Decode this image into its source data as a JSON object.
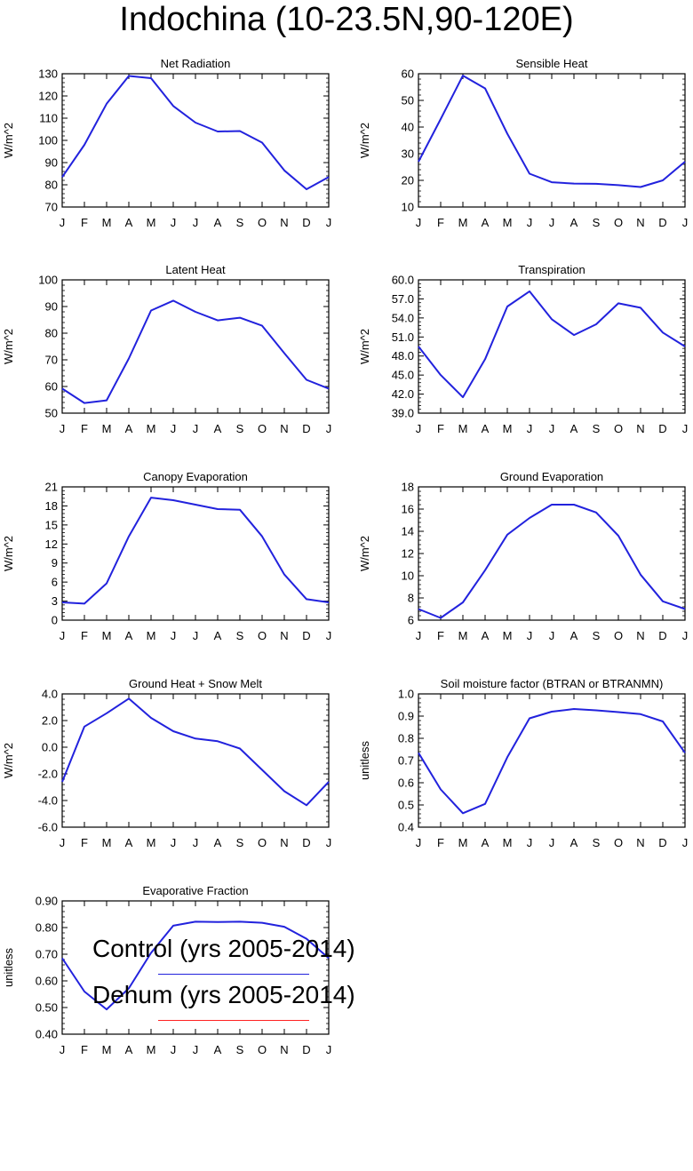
{
  "title": "Indochina (10-23.5N,90-120E)",
  "months": [
    "J",
    "F",
    "M",
    "A",
    "M",
    "J",
    "J",
    "A",
    "S",
    "O",
    "N",
    "D",
    "J"
  ],
  "colors": {
    "control": "#2222dd",
    "dehum": "#ff2222",
    "axis": "#000000"
  },
  "legend": [
    {
      "label": "Control (yrs 2005-2014)",
      "color": "#2222dd"
    },
    {
      "label": "Dehum (yrs 2005-2014)",
      "color": "#ff2222"
    }
  ],
  "chart_data": [
    {
      "type": "line",
      "title": "Net Radiation",
      "ylabel": "W/m^2",
      "ylim": [
        70,
        130
      ],
      "yticks": [
        "70",
        "80",
        "90",
        "100",
        "110",
        "120",
        "130"
      ],
      "series": [
        {
          "name": "Control (yrs 2005-2014)",
          "values": [
            83.5,
            98,
            116.5,
            129,
            128,
            115.5,
            108,
            104,
            104.2,
            99,
            86.5,
            78,
            83.5
          ]
        }
      ]
    },
    {
      "type": "line",
      "title": "Sensible Heat",
      "ylabel": "W/m^2",
      "ylim": [
        10,
        60
      ],
      "yticks": [
        "10",
        "20",
        "30",
        "40",
        "50",
        "60"
      ],
      "series": [
        {
          "name": "Control (yrs 2005-2014)",
          "values": [
            27,
            43,
            59.3,
            54.5,
            37.5,
            22.5,
            19.3,
            18.8,
            18.7,
            18.2,
            17.5,
            20,
            27
          ]
        }
      ]
    },
    {
      "type": "line",
      "title": "Latent Heat",
      "ylabel": "W/m^2",
      "ylim": [
        50,
        100
      ],
      "yticks": [
        "50",
        "60",
        "70",
        "80",
        "90",
        "100"
      ],
      "series": [
        {
          "name": "Control (yrs 2005-2014)",
          "values": [
            59.2,
            53.8,
            54.8,
            70.5,
            88.5,
            92.2,
            88,
            84.8,
            85.8,
            82.8,
            72.5,
            62.5,
            59.2
          ]
        }
      ]
    },
    {
      "type": "line",
      "title": "Transpiration",
      "ylabel": "W/m^2",
      "ylim": [
        39,
        60
      ],
      "yticks": [
        "39.0",
        "42.0",
        "45.0",
        "48.0",
        "51.0",
        "54.0",
        "57.0",
        "60.0"
      ],
      "series": [
        {
          "name": "Control (yrs 2005-2014)",
          "values": [
            49.5,
            45.0,
            41.5,
            47.5,
            55.8,
            58.2,
            53.8,
            51.3,
            53.0,
            56.3,
            55.6,
            51.7,
            49.5
          ]
        }
      ]
    },
    {
      "type": "line",
      "title": "Canopy Evaporation",
      "ylabel": "W/m^2",
      "ylim": [
        0,
        21
      ],
      "yticks": [
        "0",
        "3",
        "6",
        "9",
        "12",
        "15",
        "18",
        "21"
      ],
      "series": [
        {
          "name": "Control (yrs 2005-2014)",
          "values": [
            2.8,
            2.6,
            5.8,
            13.2,
            19.3,
            18.9,
            18.2,
            17.5,
            17.4,
            13.2,
            7.2,
            3.3,
            2.8
          ]
        }
      ]
    },
    {
      "type": "line",
      "title": "Ground Evaporation",
      "ylabel": "W/m^2",
      "ylim": [
        6,
        18
      ],
      "yticks": [
        "6",
        "8",
        "10",
        "12",
        "14",
        "16",
        "18"
      ],
      "series": [
        {
          "name": "Control (yrs 2005-2014)",
          "values": [
            7.0,
            6.2,
            7.6,
            10.5,
            13.7,
            15.2,
            16.4,
            16.4,
            15.7,
            13.6,
            10.1,
            7.7,
            7.0
          ]
        }
      ]
    },
    {
      "type": "line",
      "title": "Ground Heat + Snow Melt",
      "ylabel": "W/m^2",
      "ylim": [
        -6,
        4
      ],
      "yticks": [
        "-6.0",
        "-4.0",
        "-2.0",
        "0.0",
        "2.0",
        "4.0"
      ],
      "series": [
        {
          "name": "Control (yrs 2005-2014)",
          "values": [
            -2.6,
            1.55,
            2.55,
            3.65,
            2.2,
            1.2,
            0.65,
            0.45,
            -0.1,
            -1.7,
            -3.3,
            -4.35,
            -2.6
          ]
        }
      ]
    },
    {
      "type": "line",
      "title": "Soil moisture factor (BTRAN or BTRANMN)",
      "ylabel": "unitless",
      "ylim": [
        0.4,
        1.0
      ],
      "yticks": [
        "0.4",
        "0.5",
        "0.6",
        "0.7",
        "0.8",
        "0.9",
        "1.0"
      ],
      "series": [
        {
          "name": "Control (yrs 2005-2014)",
          "values": [
            0.735,
            0.57,
            0.463,
            0.505,
            0.715,
            0.89,
            0.92,
            0.932,
            0.926,
            0.918,
            0.909,
            0.876,
            0.735
          ]
        }
      ]
    },
    {
      "type": "line",
      "title": "Evaporative Fraction",
      "ylabel": "unitless",
      "ylim": [
        0.4,
        0.9
      ],
      "yticks": [
        "0.40",
        "0.50",
        "0.60",
        "0.70",
        "0.80",
        "0.90"
      ],
      "series": [
        {
          "name": "Control (yrs 2005-2014)",
          "values": [
            0.685,
            0.56,
            0.493,
            0.572,
            0.705,
            0.807,
            0.822,
            0.821,
            0.822,
            0.818,
            0.803,
            0.758,
            0.685
          ]
        }
      ]
    }
  ]
}
